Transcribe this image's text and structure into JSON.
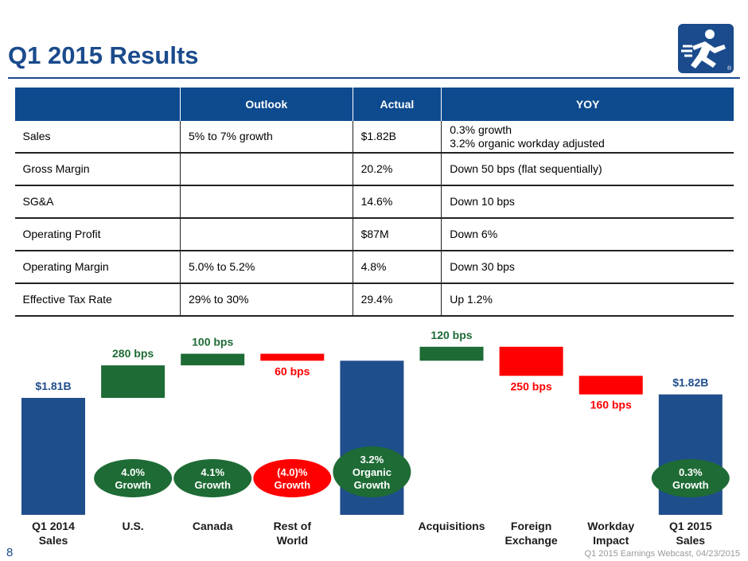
{
  "header": {
    "title": "Q1 2015 Results"
  },
  "table": {
    "columns": [
      "Outlook",
      "Actual",
      "YOY"
    ],
    "rows": [
      [
        "Sales",
        "5% to 7% growth",
        "$1.82B",
        "0.3% growth\n3.2% organic workday adjusted"
      ],
      [
        "Gross Margin",
        null,
        "20.2%",
        "Down 50 bps (flat sequentially)"
      ],
      [
        "SG&A",
        null,
        "14.6%",
        "Down 10 bps"
      ],
      [
        "Operating Profit",
        null,
        "$87M",
        "Down 6%"
      ],
      [
        "Operating Margin",
        "5.0% to 5.2%",
        "4.8%",
        "Down 30 bps"
      ],
      [
        "Effective Tax Rate",
        "29% to 30%",
        "29.4%",
        "Up 1.2%"
      ]
    ]
  },
  "chart_data": {
    "type": "waterfall",
    "categories": [
      "Q1 2014\nSales",
      "U.S.",
      "Canada",
      "Rest of\nWorld",
      null,
      "Acquisitions",
      "Foreign\nExchange",
      "Workday\nImpact",
      "Q1 2015\nSales"
    ],
    "values": [
      1.81,
      280,
      100,
      -60,
      null,
      120,
      -250,
      -160,
      1.82
    ],
    "value_labels": [
      "$1.81B",
      "280 bps",
      "100 bps",
      "60 bps",
      null,
      "120 bps",
      "250 bps",
      "160 bps",
      "$1.82B"
    ],
    "growth_labels": [
      null,
      "4.0%\nGrowth",
      "4.1%\nGrowth",
      "(4.0)%\nGrowth",
      "3.2%\nOrganic\nGrowth",
      null,
      null,
      null,
      "0.3%\nGrowth"
    ],
    "growth_colors": [
      null,
      "#1e6b35",
      "#1e6b35",
      "#ff0000",
      "#1e6b35",
      null,
      null,
      null,
      "#1e6b35"
    ],
    "total_color": "#1f4e8c",
    "increase_color": "#1e6b35",
    "decrease_color": "#ff0000"
  },
  "footer": {
    "page": "8",
    "note": "Q1 2015 Earnings Webcast, 04/23/2015"
  }
}
